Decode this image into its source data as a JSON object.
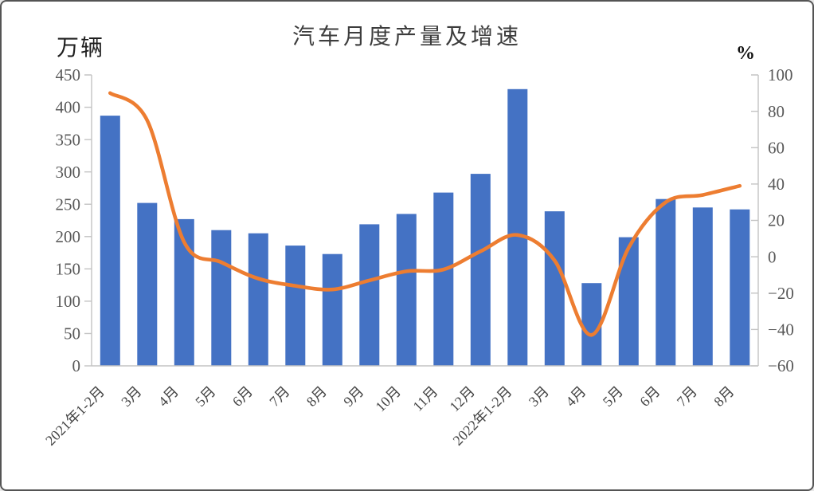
{
  "title": "汽车月度产量及增速",
  "left_axis": {
    "unit_label": "万辆",
    "ticks": [
      450,
      400,
      350,
      300,
      250,
      200,
      150,
      100,
      50,
      0
    ],
    "min": 0,
    "max": 450
  },
  "right_axis": {
    "unit_label": "%",
    "ticks": [
      100,
      80,
      60,
      40,
      20,
      0,
      -20,
      -40,
      -60
    ],
    "min": -60,
    "max": 100
  },
  "chart_data": {
    "type": "bar",
    "subtype": "combo-bar-line",
    "title": "汽车月度产量及增速",
    "xlabel": "",
    "ylabel_left": "万辆",
    "ylabel_right": "%",
    "ylim_left": [
      0,
      450
    ],
    "ylim_right": [
      -60,
      100
    ],
    "grid": false,
    "legend": "none",
    "categories": [
      "2021年1-2月",
      "3月",
      "4月",
      "5月",
      "6月",
      "7月",
      "8月",
      "9月",
      "10月",
      "11月",
      "12月",
      "2022年1-2月",
      "3月",
      "4月",
      "5月",
      "6月",
      "7月",
      "8月"
    ],
    "series": [
      {
        "name": "产量",
        "type": "bar",
        "axis": "left",
        "unit": "万辆",
        "color": "#4472C4",
        "values": [
          387,
          252,
          227,
          210,
          205,
          186,
          173,
          219,
          235,
          268,
          297,
          428,
          239,
          128,
          199,
          258,
          245,
          242
        ]
      },
      {
        "name": "增速",
        "type": "line",
        "axis": "right",
        "unit": "%",
        "color": "#ED7D31",
        "smooth": true,
        "values": [
          90,
          75,
          8,
          -3,
          -12,
          -16,
          -18,
          -13,
          -8,
          -7,
          3,
          12,
          -2,
          -43,
          5,
          30,
          34,
          39
        ]
      }
    ]
  },
  "colors": {
    "bar": "#4472C4",
    "line": "#ED7D31",
    "axis_line": "#c3c3c3",
    "tick_label": "#595959",
    "category_label": "#454545",
    "title": "#3d3d3d"
  }
}
